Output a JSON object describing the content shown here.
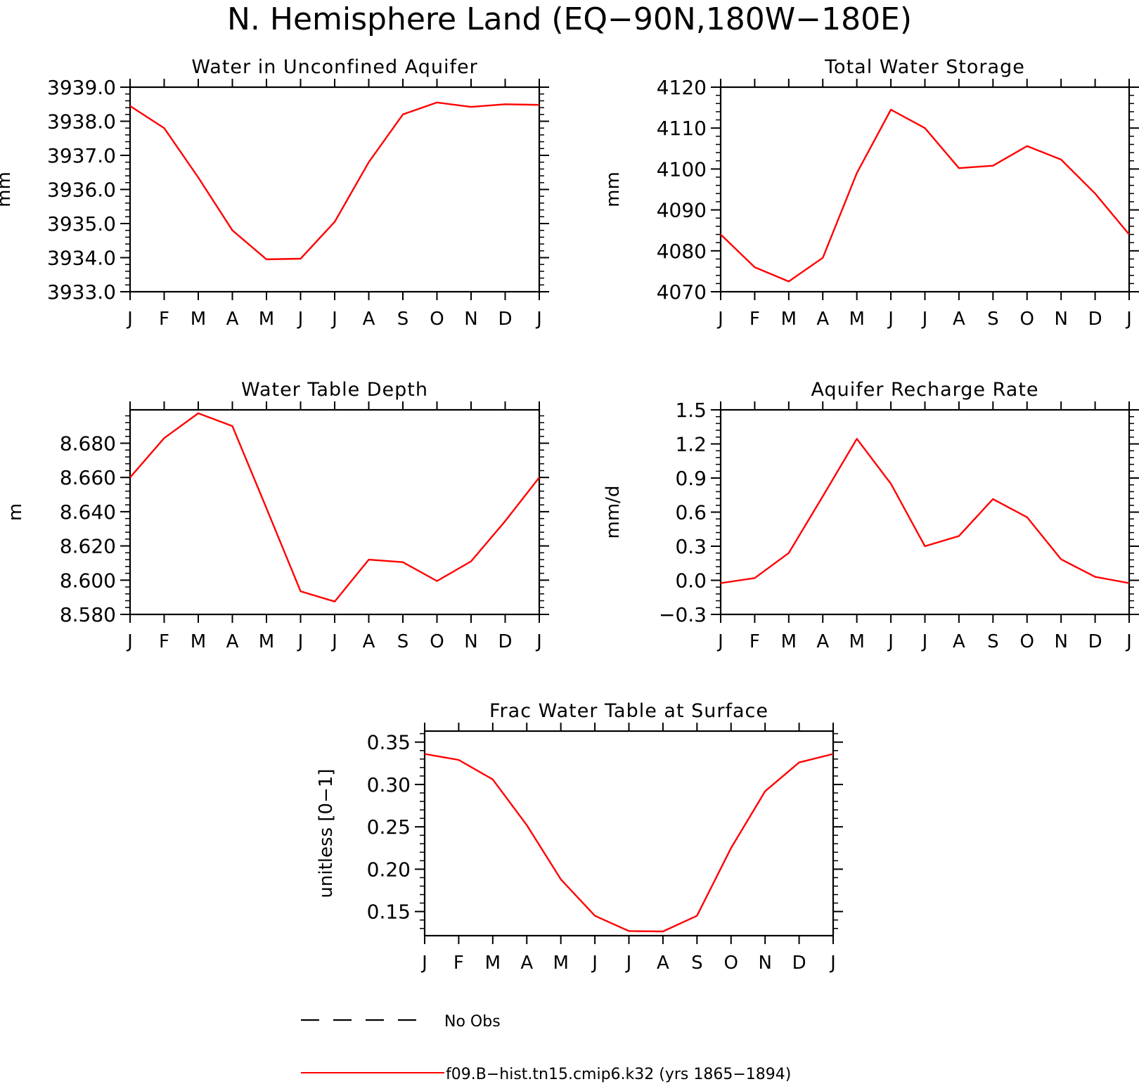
{
  "page_title": "N. Hemisphere Land (EQ−90N,180W−180E)",
  "legend": {
    "obs_label": "No Obs",
    "model_label": "f09.B−hist.tn15.cmip6.k32 (yrs 1865−1894)",
    "model_color": "#ff0000",
    "obs_color": "#000000"
  },
  "chart_data": [
    {
      "type": "line",
      "title": "Water in Unconfined Aquifer",
      "ylabel": "mm",
      "categories": [
        "J",
        "F",
        "M",
        "A",
        "M",
        "J",
        "J",
        "A",
        "S",
        "O",
        "N",
        "D",
        "J"
      ],
      "ylim": [
        3933.0,
        3939.0
      ],
      "yticks": [
        3933.0,
        3934.0,
        3935.0,
        3936.0,
        3937.0,
        3938.0,
        3939.0
      ],
      "ytick_labels": [
        "3933.0",
        "3934.0",
        "3935.0",
        "3936.0",
        "3937.0",
        "3938.0",
        "3939.0"
      ],
      "y_minor": 0.2,
      "series": [
        {
          "values": [
            3938.45,
            3937.8,
            3936.35,
            3934.8,
            3933.95,
            3933.97,
            3935.05,
            3936.8,
            3938.2,
            3938.55,
            3938.42,
            3938.5,
            3938.48
          ]
        }
      ]
    },
    {
      "type": "line",
      "title": "Total Water Storage",
      "ylabel": "mm",
      "categories": [
        "J",
        "F",
        "M",
        "A",
        "M",
        "J",
        "J",
        "A",
        "S",
        "O",
        "N",
        "D",
        "J"
      ],
      "ylim": [
        4070,
        4120
      ],
      "yticks": [
        4070,
        4080,
        4090,
        4100,
        4110,
        4120
      ],
      "ytick_labels": [
        "4070",
        "4080",
        "4090",
        "4100",
        "4110",
        "4120"
      ],
      "y_minor": 2,
      "series": [
        {
          "values": [
            4084,
            4076,
            4072.5,
            4078.3,
            4099,
            4114.5,
            4110,
            4100.2,
            4100.8,
            4105.6,
            4102.3,
            4094,
            4084
          ]
        }
      ]
    },
    {
      "type": "line",
      "title": "Water Table Depth",
      "ylabel": "m",
      "categories": [
        "J",
        "F",
        "M",
        "A",
        "M",
        "J",
        "J",
        "A",
        "S",
        "O",
        "N",
        "D",
        "J"
      ],
      "ylim": [
        8.58,
        8.6995
      ],
      "yticks": [
        8.58,
        8.6,
        8.62,
        8.64,
        8.66,
        8.68
      ],
      "ytick_labels": [
        "8.580",
        "8.600",
        "8.620",
        "8.640",
        "8.660",
        "8.680"
      ],
      "y_minor": 0.004,
      "series": [
        {
          "values": [
            8.66,
            8.683,
            8.6975,
            8.69,
            8.642,
            8.5935,
            8.5875,
            8.612,
            8.6105,
            8.5995,
            8.611,
            8.6345,
            8.66
          ]
        }
      ]
    },
    {
      "type": "line",
      "title": "Aquifer Recharge Rate",
      "ylabel": "mm/d",
      "categories": [
        "J",
        "F",
        "M",
        "A",
        "M",
        "J",
        "J",
        "A",
        "S",
        "O",
        "N",
        "D",
        "J"
      ],
      "ylim": [
        -0.3,
        1.5
      ],
      "yticks": [
        -0.3,
        0.0,
        0.3,
        0.6,
        0.9,
        1.2,
        1.5
      ],
      "ytick_labels": [
        "−0.3",
        "0.0",
        "0.3",
        "0.6",
        "0.9",
        "1.2",
        "1.5"
      ],
      "y_minor": 0.06,
      "series": [
        {
          "values": [
            -0.025,
            0.02,
            0.24,
            0.74,
            1.245,
            0.85,
            0.3,
            0.39,
            0.715,
            0.555,
            0.185,
            0.03,
            -0.025
          ]
        }
      ]
    },
    {
      "type": "line",
      "title": "Frac Water Table at Surface",
      "ylabel": "unitless [0−1]",
      "categories": [
        "J",
        "F",
        "M",
        "A",
        "M",
        "J",
        "J",
        "A",
        "S",
        "O",
        "N",
        "D",
        "J"
      ],
      "ylim": [
        0.1215,
        0.363
      ],
      "yticks": [
        0.15,
        0.2,
        0.25,
        0.3,
        0.35
      ],
      "ytick_labels": [
        "0.15",
        "0.20",
        "0.25",
        "0.30",
        "0.35"
      ],
      "y_minor": 0.01,
      "series": [
        {
          "values": [
            0.336,
            0.329,
            0.306,
            0.252,
            0.188,
            0.145,
            0.127,
            0.1265,
            0.145,
            0.225,
            0.292,
            0.326,
            0.336
          ]
        }
      ]
    }
  ]
}
